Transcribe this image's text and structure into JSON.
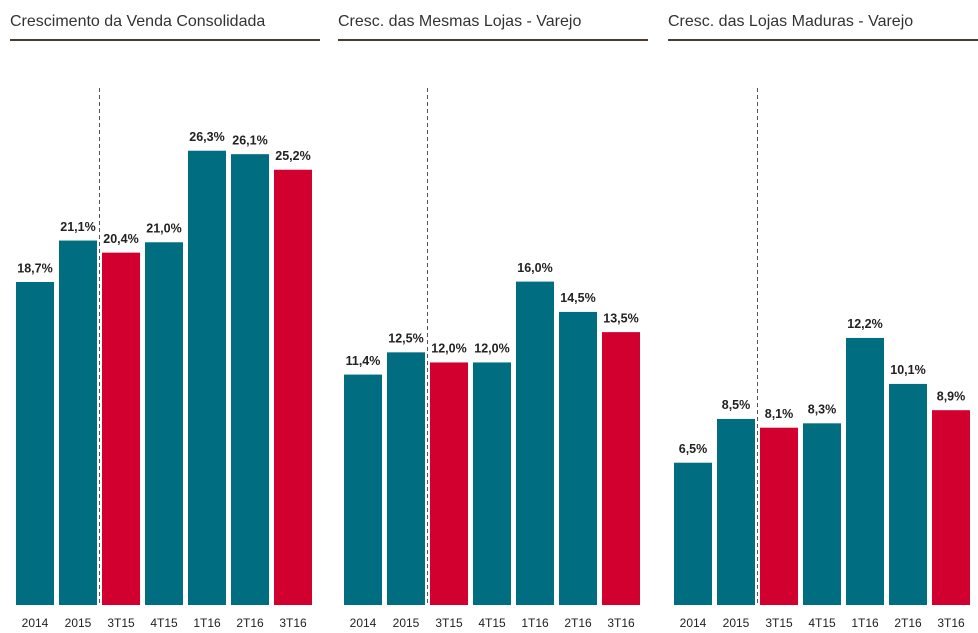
{
  "chart_data": [
    {
      "type": "bar",
      "title": "Crescimento da Venda Consolidada",
      "categories": [
        "2014",
        "2015",
        "3T15",
        "4T15",
        "1T16",
        "2T16",
        "3T16"
      ],
      "values": [
        18.7,
        21.1,
        20.4,
        21.0,
        26.3,
        26.1,
        25.2
      ],
      "value_labels": [
        "18,7%",
        "21,1%",
        "20,4%",
        "21,0%",
        "26,3%",
        "26,1%",
        "25,2%"
      ],
      "colors": [
        "#006d80",
        "#006d80",
        "#d2002f",
        "#006d80",
        "#006d80",
        "#006d80",
        "#d2002f"
      ],
      "ylim": [
        0,
        27.5
      ]
    },
    {
      "type": "bar",
      "title": "Cresc. das Mesmas Lojas - Varejo",
      "categories": [
        "2014",
        "2015",
        "3T15",
        "4T15",
        "1T16",
        "2T16",
        "3T16"
      ],
      "values": [
        11.4,
        12.5,
        12.0,
        12.0,
        16.0,
        14.5,
        13.5
      ],
      "value_labels": [
        "11,4%",
        "12,5%",
        "12,0%",
        "12,0%",
        "16,0%",
        "14,5%",
        "13,5%"
      ],
      "colors": [
        "#006d80",
        "#006d80",
        "#d2002f",
        "#006d80",
        "#006d80",
        "#006d80",
        "#d2002f"
      ],
      "ylim": [
        0,
        23.5
      ]
    },
    {
      "type": "bar",
      "title": "Cresc. das Lojas Maduras - Varejo",
      "categories": [
        "2014",
        "2015",
        "3T15",
        "4T15",
        "1T16",
        "2T16",
        "3T16"
      ],
      "values": [
        6.5,
        8.5,
        8.1,
        8.3,
        12.2,
        10.1,
        8.9
      ],
      "value_labels": [
        "6,5%",
        "8,5%",
        "8,1%",
        "8,3%",
        "12,2%",
        "10,1%",
        "8,9%"
      ],
      "colors": [
        "#006d80",
        "#006d80",
        "#d2002f",
        "#006d80",
        "#006d80",
        "#006d80",
        "#d2002f"
      ],
      "ylim": [
        0,
        21.7
      ]
    }
  ]
}
